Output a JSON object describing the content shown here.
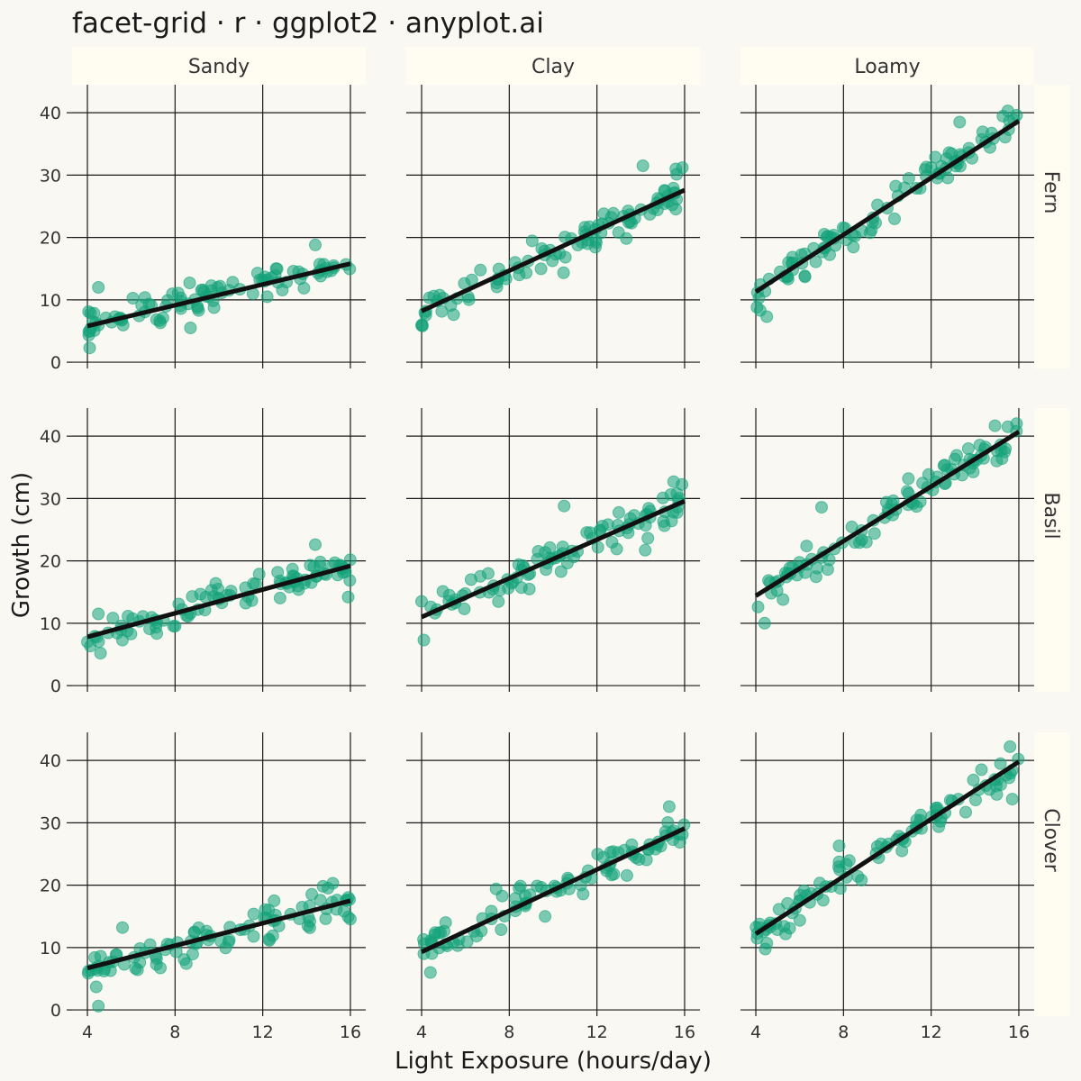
{
  "title": "facet-grid · r · ggplot2 · anyplot.ai",
  "xlabel": "Light Exposure (hours/day)",
  "ylabel": "Growth (cm)",
  "colors": {
    "background": "#FAF8F3",
    "strip": "#FFFCF2",
    "point": "#14A37A",
    "line": "#111111",
    "grid": "#1A1A1A",
    "text": "#333333"
  },
  "chart_data": {
    "type": "scatter",
    "facet": {
      "columns": [
        "Sandy",
        "Clay",
        "Loamy"
      ],
      "rows": [
        "Fern",
        "Basil",
        "Clover"
      ]
    },
    "xlim": [
      3.3,
      16.7
    ],
    "ylim": [
      -1,
      44.5
    ],
    "x_ticks": [
      4,
      8,
      12,
      16
    ],
    "y_ticks": [
      0,
      10,
      20,
      30,
      40
    ],
    "grid": true,
    "points_per_panel": 90,
    "panels": [
      {
        "row": "Fern",
        "col": "Sandy",
        "trend": [
          [
            4,
            5.8
          ],
          [
            16,
            15.8
          ]
        ],
        "noise": 2.2,
        "outliers": [
          [
            4.1,
            2.3
          ],
          [
            4.1,
            5.0
          ],
          [
            4.5,
            12.0
          ],
          [
            8.7,
            5.5
          ],
          [
            14.4,
            18.8
          ]
        ]
      },
      {
        "row": "Fern",
        "col": "Clay",
        "trend": [
          [
            4,
            8.2
          ],
          [
            16,
            27.6
          ]
        ],
        "noise": 2.4,
        "outliers": [
          [
            4.0,
            5.9
          ],
          [
            4.2,
            8.2
          ],
          [
            14.1,
            31.5
          ],
          [
            15.6,
            31.0
          ],
          [
            15.9,
            31.2
          ]
        ]
      },
      {
        "row": "Fern",
        "col": "Loamy",
        "trend": [
          [
            4,
            11.3
          ],
          [
            16,
            38.7
          ]
        ],
        "noise": 2.6,
        "outliers": [
          [
            4.2,
            8.3
          ],
          [
            4.5,
            7.3
          ],
          [
            13.3,
            38.5
          ],
          [
            15.5,
            40.3
          ],
          [
            15.9,
            39.6
          ]
        ]
      },
      {
        "row": "Basil",
        "col": "Sandy",
        "trend": [
          [
            4,
            7.8
          ],
          [
            16,
            19.2
          ]
        ],
        "noise": 2.2,
        "outliers": [
          [
            4.0,
            7.0
          ],
          [
            4.5,
            11.5
          ],
          [
            4.6,
            5.2
          ],
          [
            14.4,
            22.6
          ],
          [
            15.9,
            14.2
          ]
        ]
      },
      {
        "row": "Basil",
        "col": "Clay",
        "trend": [
          [
            4,
            11.0
          ],
          [
            16,
            29.6
          ]
        ],
        "noise": 2.6,
        "outliers": [
          [
            4.0,
            13.5
          ],
          [
            4.1,
            7.3
          ],
          [
            10.5,
            28.8
          ],
          [
            15.5,
            32.7
          ],
          [
            14.2,
            21.7
          ]
        ]
      },
      {
        "row": "Basil",
        "col": "Loamy",
        "trend": [
          [
            4,
            14.4
          ],
          [
            16,
            40.7
          ]
        ],
        "noise": 2.6,
        "outliers": [
          [
            4.1,
            12.6
          ],
          [
            4.4,
            10.0
          ],
          [
            7.0,
            28.6
          ],
          [
            15.5,
            41.5
          ],
          [
            15.9,
            42.0
          ]
        ]
      },
      {
        "row": "Clover",
        "col": "Sandy",
        "trend": [
          [
            4,
            6.7
          ],
          [
            16,
            17.5
          ]
        ],
        "noise": 2.2,
        "outliers": [
          [
            4.4,
            3.7
          ],
          [
            4.5,
            0.6
          ],
          [
            5.6,
            13.2
          ],
          [
            15.2,
            20.3
          ],
          [
            15.9,
            14.9
          ]
        ]
      },
      {
        "row": "Clover",
        "col": "Clay",
        "trend": [
          [
            4,
            9.3
          ],
          [
            16,
            29.1
          ]
        ],
        "noise": 2.6,
        "outliers": [
          [
            4.1,
            9.0
          ],
          [
            4.4,
            6.0
          ],
          [
            7.4,
            19.4
          ],
          [
            15.3,
            32.6
          ],
          [
            15.9,
            28.1
          ]
        ]
      },
      {
        "row": "Clover",
        "col": "Loamy",
        "trend": [
          [
            4,
            12.2
          ],
          [
            16,
            39.8
          ]
        ],
        "noise": 2.6,
        "outliers": [
          [
            4.2,
            13.2
          ],
          [
            4.5,
            10.7
          ],
          [
            7.8,
            26.3
          ],
          [
            15.6,
            42.2
          ],
          [
            15.7,
            33.8
          ]
        ]
      }
    ]
  }
}
